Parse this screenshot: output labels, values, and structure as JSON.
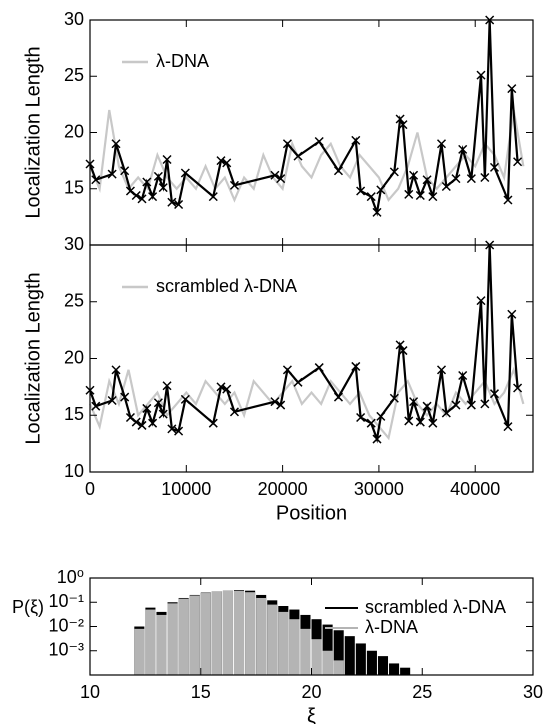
{
  "chart_data": [
    {
      "type": "line",
      "ylabel": "Localization Length",
      "xlim": [
        0,
        46000
      ],
      "ylim": [
        10,
        30
      ],
      "yticks": [
        15,
        20,
        25,
        30
      ],
      "legend": "upper left",
      "series": [
        {
          "name": "λ-DNA",
          "color": "#c8c8c8",
          "x": [
            0,
            1000,
            2000,
            3000,
            4000,
            5000,
            6000,
            7000,
            8000,
            9000,
            10000,
            11000,
            12000,
            13000,
            14000,
            15000,
            16000,
            17000,
            18000,
            19000,
            20000,
            21000,
            22000,
            23000,
            24000,
            25000,
            26000,
            27000,
            28000,
            29000,
            30000,
            31000,
            32000,
            33000,
            34000,
            35000,
            36000,
            37000,
            38000,
            39000,
            40000,
            41000,
            42000,
            43000,
            44000,
            45000
          ],
          "values": [
            17,
            15,
            22,
            17,
            15,
            16,
            15,
            18,
            16,
            15,
            16,
            15,
            17,
            15,
            16,
            14,
            16,
            15,
            18,
            16,
            15,
            19,
            17,
            16,
            18,
            19,
            17,
            16,
            18,
            17,
            16,
            14,
            15,
            17,
            20,
            16,
            15,
            16,
            17,
            18,
            17,
            19,
            18,
            16,
            22,
            17
          ]
        },
        {
          "color": "#000000",
          "marker": "x",
          "x": [
            0,
            600,
            2300,
            2700,
            3600,
            4200,
            4800,
            5400,
            5900,
            6500,
            7100,
            7600,
            8000,
            8500,
            9200,
            9900,
            12800,
            13600,
            14200,
            15000,
            19200,
            19800,
            20500,
            21600,
            23800,
            25800,
            27600,
            28100,
            29200,
            29800,
            30200,
            31600,
            32200,
            32500,
            33100,
            33600,
            34300,
            35000,
            35600,
            36500,
            37000,
            38000,
            38700,
            39600,
            40600,
            41000,
            41500,
            42000,
            43400,
            43800,
            44400
          ],
          "values": [
            17.2,
            15.8,
            16.3,
            19.0,
            16.6,
            14.8,
            14.4,
            14.1,
            15.6,
            14.3,
            16.1,
            15.1,
            17.6,
            13.8,
            13.6,
            16.4,
            14.3,
            17.5,
            17.3,
            15.3,
            16.2,
            15.9,
            19.0,
            17.9,
            19.2,
            16.6,
            19.3,
            14.8,
            14.3,
            12.9,
            14.9,
            16.5,
            21.2,
            20.7,
            14.5,
            16.2,
            14.4,
            15.8,
            14.3,
            19.0,
            15.2,
            15.9,
            18.5,
            15.9,
            25.1,
            16.0,
            30.0,
            16.9,
            14.0,
            23.9,
            17.4
          ]
        }
      ]
    },
    {
      "type": "line",
      "ylabel": "Localization Length",
      "xlabel": "Position",
      "xlim": [
        0,
        46000
      ],
      "xticks": [
        0,
        10000,
        20000,
        30000,
        40000
      ],
      "ylim": [
        10,
        30
      ],
      "yticks": [
        10,
        15,
        20,
        25,
        30
      ],
      "legend": "upper left",
      "series": [
        {
          "name": "scrambled λ-DNA",
          "color": "#c8c8c8",
          "x": [
            0,
            1000,
            2000,
            3000,
            4000,
            5000,
            6000,
            7000,
            8000,
            9000,
            10000,
            11000,
            12000,
            13000,
            14000,
            15000,
            16000,
            17000,
            18000,
            19000,
            20000,
            21000,
            22000,
            23000,
            24000,
            25000,
            26000,
            27000,
            28000,
            29000,
            30000,
            31000,
            32000,
            33000,
            34000,
            35000,
            36000,
            37000,
            38000,
            39000,
            40000,
            41000,
            42000,
            43000,
            44000,
            45000
          ],
          "values": [
            16,
            14,
            18,
            16,
            19,
            15,
            16,
            17,
            15,
            16,
            17,
            16,
            18,
            17,
            16,
            17,
            15,
            18,
            17,
            16,
            17,
            18,
            16,
            17,
            16,
            18,
            17,
            16,
            17,
            15,
            14,
            13,
            17,
            18,
            16,
            15,
            16,
            15,
            17,
            16,
            17,
            18,
            16,
            17,
            19,
            16
          ]
        },
        {
          "color": "#000000",
          "marker": "x",
          "x": [
            0,
            600,
            2300,
            2700,
            3600,
            4200,
            4800,
            5400,
            5900,
            6500,
            7100,
            7600,
            8000,
            8500,
            9200,
            9900,
            12800,
            13600,
            14200,
            15000,
            19200,
            19800,
            20500,
            21600,
            23800,
            25800,
            27600,
            28100,
            29200,
            29800,
            30200,
            31600,
            32200,
            32500,
            33100,
            33600,
            34300,
            35000,
            35600,
            36500,
            37000,
            38000,
            38700,
            39600,
            40600,
            41000,
            41500,
            42000,
            43400,
            43800,
            44400
          ],
          "values": [
            17.2,
            15.8,
            16.3,
            19.0,
            16.6,
            14.8,
            14.4,
            14.1,
            15.6,
            14.3,
            16.1,
            15.1,
            17.6,
            13.8,
            13.6,
            16.4,
            14.3,
            17.5,
            17.3,
            15.3,
            16.2,
            15.9,
            19.0,
            17.9,
            19.2,
            16.6,
            19.3,
            14.8,
            14.3,
            12.9,
            14.9,
            16.5,
            21.2,
            20.7,
            14.5,
            16.2,
            14.4,
            15.8,
            14.3,
            19.0,
            15.2,
            15.9,
            18.5,
            15.9,
            25.1,
            16.0,
            30.0,
            16.9,
            14.0,
            23.9,
            17.4
          ]
        }
      ]
    },
    {
      "type": "histogram",
      "ylabel": "P(ξ)",
      "xlabel": "ξ",
      "xlim": [
        10,
        30
      ],
      "xticks": [
        10,
        15,
        20,
        25,
        30
      ],
      "ylim": [
        0.0001,
        1
      ],
      "log_y": true,
      "legend": "upper right",
      "yticks": [
        {
          "value": 1,
          "label": "10⁰"
        },
        {
          "value": 0.1,
          "label": "10⁻¹"
        },
        {
          "value": 0.01,
          "label": "10⁻²"
        },
        {
          "value": 0.001,
          "label": "10⁻³"
        }
      ],
      "bins": [
        12,
        12.5,
        13,
        13.5,
        14,
        14.5,
        15,
        15.5,
        16,
        16.5,
        17,
        17.5,
        18,
        18.5,
        19,
        19.5,
        20,
        20.5,
        21,
        21.5,
        22,
        22.5,
        23,
        23.5,
        24,
        24.5
      ],
      "series": [
        {
          "name": "scrambled λ-DNA",
          "color": "#000000",
          "values": [
            0.01,
            0.06,
            0.04,
            0.1,
            0.15,
            0.2,
            0.25,
            0.28,
            0.3,
            0.32,
            0.3,
            0.2,
            0.12,
            0.07,
            0.05,
            0.03,
            0.02,
            0.012,
            0.007,
            0.004,
            0.002,
            0.001,
            0.0006,
            0.0003,
            0.0002
          ]
        },
        {
          "name": "λ-DNA",
          "color": "#b4b4b4",
          "values": [
            0.008,
            0.05,
            0.03,
            0.09,
            0.14,
            0.19,
            0.24,
            0.28,
            0.3,
            0.3,
            0.26,
            0.15,
            0.08,
            0.04,
            0.02,
            0.008,
            0.003,
            0.001,
            0.0004,
            0,
            0,
            0,
            0,
            0,
            0
          ]
        }
      ]
    }
  ]
}
